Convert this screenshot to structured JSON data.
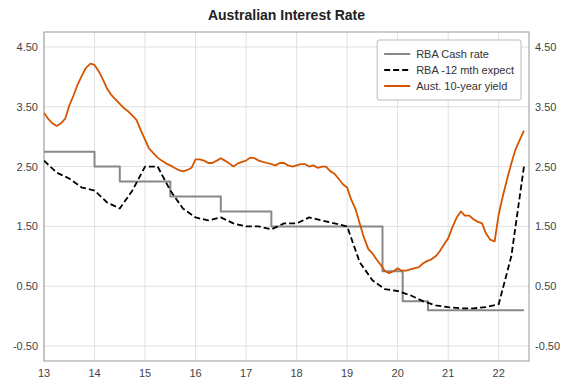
{
  "chart_data": {
    "type": "line",
    "title": "Australian Interest Rate",
    "xlim": [
      13,
      22.6
    ],
    "xticks": [
      13,
      14,
      15,
      16,
      17,
      18,
      19,
      20,
      21,
      22
    ],
    "ylim": [
      -0.75,
      4.75
    ],
    "yticks": [
      {
        "value": -0.5,
        "label": "-0.50"
      },
      {
        "value": 0.5,
        "label": "0.50"
      },
      {
        "value": 1.5,
        "label": "1.50"
      },
      {
        "value": 2.5,
        "label": "2.50"
      },
      {
        "value": 3.5,
        "label": "3.50"
      },
      {
        "value": 4.5,
        "label": "4.50"
      }
    ],
    "y2lim": [
      -0.75,
      4.75
    ],
    "y2ticks": [
      {
        "value": -0.5,
        "label": "-0.50"
      },
      {
        "value": 0.5,
        "label": "0.50"
      },
      {
        "value": 1.5,
        "label": "1.50"
      },
      {
        "value": 2.5,
        "label": "2.50"
      },
      {
        "value": 3.5,
        "label": "3.50"
      },
      {
        "value": 4.5,
        "label": "4.50"
      }
    ],
    "grid": true,
    "legend": "upper right",
    "series": [
      {
        "name": "RBA Cash rate",
        "type": "step",
        "color": "#888888",
        "line_style": "solid",
        "x": [
          13.0,
          14.0,
          14.5,
          15.0,
          15.5,
          16.0,
          16.5,
          17.0,
          17.5,
          18.0,
          18.5,
          19.0,
          19.5,
          19.7,
          20.0,
          20.1,
          20.5,
          20.6,
          22.5
        ],
        "values": [
          2.75,
          2.5,
          2.25,
          2.25,
          2.0,
          2.0,
          1.75,
          1.75,
          1.5,
          1.5,
          1.5,
          1.5,
          1.5,
          0.75,
          0.75,
          0.25,
          0.25,
          0.1,
          0.1
        ]
      },
      {
        "name": "RBA -12 mth expect",
        "type": "line",
        "color": "#000000",
        "line_style": "dashed",
        "x": [
          13.0,
          13.25,
          13.5,
          13.75,
          14.0,
          14.25,
          14.5,
          14.75,
          15.0,
          15.25,
          15.5,
          15.75,
          16.0,
          16.25,
          16.5,
          16.75,
          17.0,
          17.25,
          17.5,
          17.75,
          18.0,
          18.25,
          18.5,
          18.75,
          19.0,
          19.25,
          19.5,
          19.75,
          20.0,
          20.25,
          20.5,
          20.75,
          21.0,
          21.25,
          21.5,
          21.75,
          22.0,
          22.25,
          22.5
        ],
        "values": [
          2.6,
          2.4,
          2.3,
          2.15,
          2.1,
          1.9,
          1.8,
          2.1,
          2.5,
          2.5,
          2.1,
          1.8,
          1.65,
          1.6,
          1.65,
          1.55,
          1.5,
          1.5,
          1.45,
          1.55,
          1.55,
          1.65,
          1.6,
          1.55,
          1.5,
          0.9,
          0.6,
          0.45,
          0.42,
          0.35,
          0.25,
          0.18,
          0.15,
          0.13,
          0.13,
          0.15,
          0.2,
          1.0,
          2.5
        ]
      },
      {
        "name": "Aust. 10-year yield",
        "type": "line",
        "color": "#D45500",
        "line_style": "solid",
        "x": [
          13.0,
          13.08,
          13.17,
          13.25,
          13.33,
          13.42,
          13.5,
          13.58,
          13.67,
          13.75,
          13.83,
          13.92,
          14.0,
          14.08,
          14.17,
          14.25,
          14.33,
          14.42,
          14.5,
          14.58,
          14.67,
          14.75,
          14.83,
          14.92,
          15.0,
          15.08,
          15.17,
          15.25,
          15.33,
          15.42,
          15.5,
          15.58,
          15.67,
          15.75,
          15.83,
          15.92,
          16.0,
          16.08,
          16.17,
          16.25,
          16.33,
          16.42,
          16.5,
          16.58,
          16.67,
          16.75,
          16.83,
          16.92,
          17.0,
          17.08,
          17.17,
          17.25,
          17.33,
          17.42,
          17.5,
          17.58,
          17.67,
          17.75,
          17.83,
          17.92,
          18.0,
          18.08,
          18.17,
          18.25,
          18.33,
          18.42,
          18.5,
          18.58,
          18.67,
          18.75,
          18.83,
          18.92,
          19.0,
          19.08,
          19.17,
          19.25,
          19.33,
          19.42,
          19.5,
          19.58,
          19.67,
          19.75,
          19.83,
          19.92,
          20.0,
          20.08,
          20.17,
          20.25,
          20.33,
          20.42,
          20.5,
          20.58,
          20.67,
          20.75,
          20.83,
          20.92,
          21.0,
          21.08,
          21.17,
          21.25,
          21.33,
          21.42,
          21.5,
          21.58,
          21.67,
          21.75,
          21.83,
          21.92,
          22.0,
          22.08,
          22.17,
          22.25,
          22.33,
          22.42,
          22.5
        ],
        "values": [
          3.4,
          3.3,
          3.22,
          3.18,
          3.22,
          3.3,
          3.52,
          3.68,
          3.88,
          4.02,
          4.15,
          4.22,
          4.2,
          4.1,
          3.95,
          3.8,
          3.7,
          3.62,
          3.55,
          3.48,
          3.42,
          3.35,
          3.28,
          3.1,
          2.95,
          2.8,
          2.72,
          2.65,
          2.6,
          2.55,
          2.52,
          2.48,
          2.44,
          2.42,
          2.44,
          2.48,
          2.62,
          2.62,
          2.6,
          2.56,
          2.56,
          2.6,
          2.64,
          2.6,
          2.55,
          2.5,
          2.55,
          2.58,
          2.6,
          2.65,
          2.64,
          2.6,
          2.58,
          2.56,
          2.54,
          2.52,
          2.56,
          2.56,
          2.52,
          2.5,
          2.52,
          2.54,
          2.54,
          2.5,
          2.52,
          2.48,
          2.5,
          2.5,
          2.42,
          2.38,
          2.3,
          2.2,
          2.15,
          1.95,
          1.78,
          1.55,
          1.32,
          1.12,
          1.05,
          0.95,
          0.85,
          0.75,
          0.72,
          0.75,
          0.8,
          0.76,
          0.76,
          0.78,
          0.8,
          0.82,
          0.88,
          0.92,
          0.95,
          1.0,
          1.08,
          1.2,
          1.3,
          1.48,
          1.65,
          1.75,
          1.68,
          1.68,
          1.62,
          1.58,
          1.55,
          1.38,
          1.28,
          1.25,
          1.7,
          2.0,
          2.3,
          2.55,
          2.78,
          2.95,
          3.1
        ]
      }
    ]
  }
}
